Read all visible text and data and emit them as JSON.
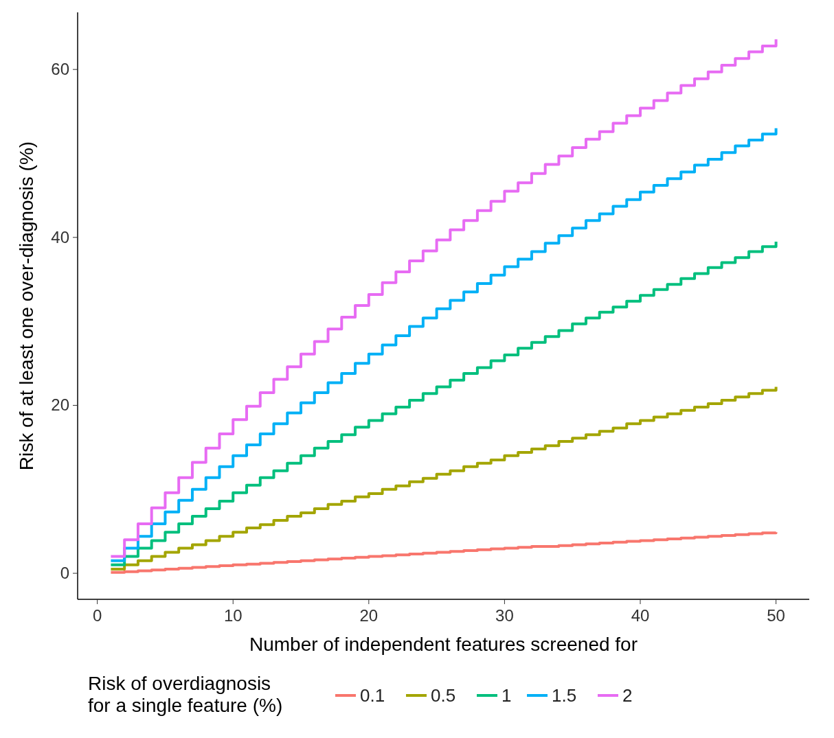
{
  "chart_data": {
    "type": "step",
    "xlabel": "Number of independent features screened for",
    "ylabel": "Risk of at least one over-diagnosis (%)",
    "legend_title": "Risk of overdiagnosis\nfor a single feature (%)",
    "legend": "bottom",
    "grid": false,
    "marker": "none",
    "line_style": "solid",
    "x": [
      1,
      2,
      3,
      4,
      5,
      6,
      7,
      8,
      9,
      10,
      11,
      12,
      13,
      14,
      15,
      16,
      17,
      18,
      19,
      20,
      21,
      22,
      23,
      24,
      25,
      26,
      27,
      28,
      29,
      30,
      31,
      32,
      33,
      34,
      35,
      36,
      37,
      38,
      39,
      40,
      41,
      42,
      43,
      44,
      45,
      46,
      47,
      48,
      49,
      50
    ],
    "xlim": [
      -1.45,
      52.45
    ],
    "xticks": [
      0,
      10,
      20,
      30,
      40,
      50
    ],
    "ylim": [
      -3.1,
      66.8
    ],
    "yticks": [
      0,
      20,
      40,
      60
    ],
    "series": [
      {
        "name": "0.1",
        "color": "#f8766d",
        "values": [
          0.1,
          0.2,
          0.3,
          0.4,
          0.5,
          0.6,
          0.7,
          0.8,
          0.9,
          1.0,
          1.1,
          1.2,
          1.3,
          1.4,
          1.5,
          1.6,
          1.7,
          1.8,
          1.9,
          2.0,
          2.1,
          2.2,
          2.3,
          2.4,
          2.5,
          2.6,
          2.7,
          2.8,
          2.9,
          3.0,
          3.1,
          3.2,
          3.2,
          3.3,
          3.4,
          3.5,
          3.6,
          3.7,
          3.8,
          3.9,
          4.0,
          4.1,
          4.2,
          4.3,
          4.4,
          4.5,
          4.6,
          4.7,
          4.8,
          4.9
        ]
      },
      {
        "name": "0.5",
        "color": "#a3a500",
        "values": [
          0.5,
          1.0,
          1.5,
          2.0,
          2.5,
          3.0,
          3.4,
          3.9,
          4.4,
          4.9,
          5.4,
          5.8,
          6.3,
          6.8,
          7.2,
          7.7,
          8.2,
          8.6,
          9.1,
          9.5,
          10.0,
          10.4,
          10.9,
          11.3,
          11.8,
          12.2,
          12.7,
          13.1,
          13.5,
          14.0,
          14.4,
          14.8,
          15.2,
          15.7,
          16.1,
          16.5,
          16.9,
          17.3,
          17.8,
          18.2,
          18.6,
          19.0,
          19.4,
          19.8,
          20.2,
          20.6,
          21.0,
          21.4,
          21.8,
          22.2
        ]
      },
      {
        "name": "1",
        "color": "#00bf7d",
        "values": [
          1.0,
          2.0,
          3.0,
          3.9,
          4.9,
          5.9,
          6.8,
          7.7,
          8.6,
          9.6,
          10.5,
          11.4,
          12.2,
          13.1,
          14.0,
          14.9,
          15.7,
          16.5,
          17.4,
          18.2,
          19.0,
          19.8,
          20.6,
          21.4,
          22.2,
          23.0,
          23.8,
          24.5,
          25.3,
          26.0,
          26.8,
          27.5,
          28.2,
          28.9,
          29.7,
          30.4,
          31.1,
          31.7,
          32.4,
          33.1,
          33.8,
          34.4,
          35.1,
          35.7,
          36.4,
          37.0,
          37.6,
          38.3,
          38.9,
          39.5
        ]
      },
      {
        "name": "1.5",
        "color": "#00b0f6",
        "values": [
          1.5,
          3.0,
          4.4,
          5.9,
          7.3,
          8.7,
          10.0,
          11.4,
          12.7,
          14.0,
          15.3,
          16.6,
          17.8,
          19.1,
          20.3,
          21.5,
          22.7,
          23.8,
          25.0,
          26.1,
          27.2,
          28.3,
          29.4,
          30.4,
          31.5,
          32.5,
          33.5,
          34.5,
          35.5,
          36.5,
          37.4,
          38.3,
          39.3,
          40.2,
          41.1,
          42.0,
          42.8,
          43.7,
          44.5,
          45.4,
          46.2,
          47.0,
          47.8,
          48.6,
          49.3,
          50.1,
          50.9,
          51.6,
          52.3,
          53.0
        ]
      },
      {
        "name": "2",
        "color": "#e76bf3",
        "values": [
          2.0,
          4.0,
          5.9,
          7.8,
          9.6,
          11.4,
          13.2,
          14.9,
          16.6,
          18.3,
          19.9,
          21.5,
          23.1,
          24.6,
          26.1,
          27.6,
          29.1,
          30.5,
          31.9,
          33.2,
          34.6,
          35.9,
          37.2,
          38.4,
          39.7,
          40.9,
          42.0,
          43.2,
          44.3,
          45.5,
          46.5,
          47.6,
          48.7,
          49.7,
          50.7,
          51.7,
          52.6,
          53.6,
          54.5,
          55.4,
          56.3,
          57.2,
          58.1,
          58.9,
          59.7,
          60.5,
          61.3,
          62.1,
          62.8,
          63.6
        ]
      }
    ]
  }
}
